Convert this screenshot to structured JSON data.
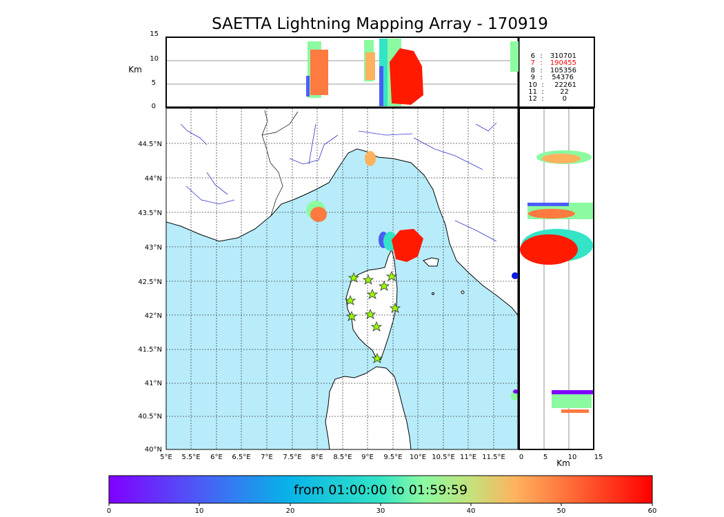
{
  "title": "SAETTA Lightning Mapping Array - 170919",
  "altitude_axis": {
    "label": "Km",
    "ticks": [
      "0",
      "5",
      "10",
      "15"
    ]
  },
  "longitude_ticks": [
    "5°E",
    "5.5°E",
    "6°E",
    "6.5°E",
    "7°E",
    "7.5°E",
    "8°E",
    "8.5°E",
    "9°E",
    "9.5°E",
    "10°E",
    "10.5°E",
    "11°E",
    "11.5°E"
  ],
  "latitude_ticks": [
    "40°N",
    "40.5°N",
    "41°N",
    "41.5°N",
    "42°N",
    "42.5°N",
    "43°N",
    "43.5°N",
    "44°N",
    "44.5°N"
  ],
  "side_panel": {
    "xlabel": "Km",
    "ticks": [
      "0",
      "5",
      "10",
      "15"
    ]
  },
  "station_table": [
    {
      "count_label": "6",
      "sep": ":",
      "value": "310701",
      "color": "#000000"
    },
    {
      "count_label": "7",
      "sep": ":",
      "value": "190455",
      "color": "#ff0000"
    },
    {
      "count_label": "8",
      "sep": ":",
      "value": "105356",
      "color": "#000000"
    },
    {
      "count_label": "9",
      "sep": ":",
      "value": "54376",
      "color": "#000000"
    },
    {
      "count_label": "10",
      "sep": ":",
      "value": "22261",
      "color": "#000000"
    },
    {
      "count_label": "11",
      "sep": ":",
      "value": "22",
      "color": "#000000"
    },
    {
      "count_label": "12",
      "sep": ":",
      "value": "0",
      "color": "#000000"
    }
  ],
  "colorbar": {
    "label": "from 01:00:00 to 01:59:59",
    "ticks": [
      "0",
      "10",
      "20",
      "30",
      "40",
      "50",
      "60"
    ]
  },
  "colors": {
    "sea": "#b8ecfa",
    "land": "#ffffff",
    "river": "#3333cc",
    "station_marker": "#99ff00"
  }
}
